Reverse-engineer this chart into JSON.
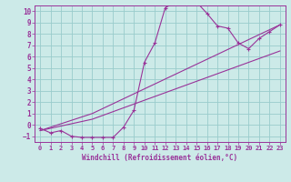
{
  "bg_color": "#cceae8",
  "grid_color": "#99cccc",
  "line_color": "#993399",
  "marker_color": "#993399",
  "xlim": [
    -0.5,
    23.5
  ],
  "ylim": [
    -1.5,
    10.5
  ],
  "xticks": [
    0,
    1,
    2,
    3,
    4,
    5,
    6,
    7,
    8,
    9,
    10,
    11,
    12,
    13,
    14,
    15,
    16,
    17,
    18,
    19,
    20,
    21,
    22,
    23
  ],
  "yticks": [
    -1,
    0,
    1,
    2,
    3,
    4,
    5,
    6,
    7,
    8,
    9,
    10
  ],
  "xlabel": "Windchill (Refroidissement éolien,°C)",
  "curve1_x": [
    0,
    1,
    2,
    3,
    4,
    5,
    6,
    7,
    8,
    9,
    10,
    11,
    12,
    13,
    14,
    15,
    16,
    17,
    18,
    19,
    20,
    21,
    22,
    23
  ],
  "curve1_y": [
    -0.3,
    -0.7,
    -0.5,
    -1.0,
    -1.1,
    -1.1,
    -1.1,
    -1.1,
    -0.2,
    1.3,
    5.5,
    7.2,
    10.3,
    10.8,
    10.8,
    10.8,
    9.8,
    8.7,
    8.5,
    7.2,
    6.7,
    7.6,
    8.2,
    8.8
  ],
  "curve2_x": [
    0,
    5,
    23
  ],
  "curve2_y": [
    -0.5,
    1.0,
    8.8
  ],
  "curve3_x": [
    0,
    5,
    23
  ],
  "curve3_y": [
    -0.5,
    0.5,
    6.5
  ]
}
